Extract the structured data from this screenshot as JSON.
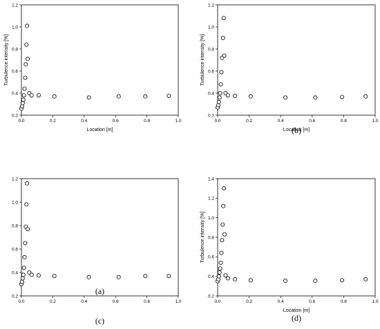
{
  "chart_data": [
    {
      "type": "scatter",
      "panel_label": "(a)",
      "xlabel": "Location [m]",
      "ylabel": "Turbulence intensity [%]",
      "xlim": [
        0,
        1.0
      ],
      "ylim": [
        0.2,
        1.2
      ],
      "xticks": [
        "0.0",
        "0.2",
        "0.4",
        "0.6",
        "0.8",
        "1.0"
      ],
      "yticks": [
        "0.2",
        "0.4",
        "0.6",
        "0.8",
        "1.0",
        "1.2"
      ],
      "grid": false,
      "legend": "none",
      "marker": "open-circle",
      "points": [
        [
          0.0,
          0.26
        ],
        [
          0.004,
          0.28
        ],
        [
          0.008,
          0.31
        ],
        [
          0.012,
          0.34
        ],
        [
          0.016,
          0.38
        ],
        [
          0.02,
          0.44
        ],
        [
          0.024,
          0.54
        ],
        [
          0.028,
          0.66
        ],
        [
          0.032,
          0.84
        ],
        [
          0.036,
          1.01
        ],
        [
          0.04,
          0.71
        ],
        [
          0.05,
          0.4
        ],
        [
          0.065,
          0.38
        ],
        [
          0.11,
          0.38
        ],
        [
          0.21,
          0.37
        ],
        [
          0.43,
          0.36
        ],
        [
          0.62,
          0.37
        ],
        [
          0.79,
          0.37
        ],
        [
          0.94,
          0.375
        ]
      ]
    },
    {
      "type": "scatter",
      "panel_label": "(b)",
      "xlabel": "Location [m]",
      "ylabel": "Turbulence intensity [%]",
      "xlim": [
        0,
        1.0
      ],
      "ylim": [
        0.2,
        1.2
      ],
      "xticks": [
        "0.0",
        "0.2",
        "0.4",
        "0.6",
        "0.8",
        "1.0"
      ],
      "yticks": [
        "0.2",
        "0.4",
        "0.6",
        "0.8",
        "1.0",
        "1.2"
      ],
      "grid": false,
      "legend": "none",
      "marker": "open-circle",
      "points": [
        [
          0.0,
          0.27
        ],
        [
          0.004,
          0.29
        ],
        [
          0.008,
          0.32
        ],
        [
          0.012,
          0.36
        ],
        [
          0.016,
          0.4
        ],
        [
          0.02,
          0.48
        ],
        [
          0.024,
          0.59
        ],
        [
          0.028,
          0.72
        ],
        [
          0.034,
          0.9
        ],
        [
          0.038,
          1.08
        ],
        [
          0.042,
          0.74
        ],
        [
          0.05,
          0.4
        ],
        [
          0.065,
          0.38
        ],
        [
          0.11,
          0.375
        ],
        [
          0.21,
          0.37
        ],
        [
          0.43,
          0.36
        ],
        [
          0.62,
          0.36
        ],
        [
          0.79,
          0.365
        ],
        [
          0.94,
          0.37
        ]
      ]
    },
    {
      "type": "scatter",
      "panel_label": "(c)",
      "xlabel": "",
      "ylabel": "",
      "xlim": [
        0,
        1.0
      ],
      "ylim": [
        0.2,
        1.2
      ],
      "xticks": [
        "0.0",
        "0.2",
        "0.4",
        "0.6",
        "0.8",
        "1.0"
      ],
      "yticks": [
        "0.2",
        "0.4",
        "0.6",
        "0.8",
        "1.0",
        "1.2"
      ],
      "grid": false,
      "legend": "none",
      "marker": "open-circle",
      "points": [
        [
          0.0,
          0.3
        ],
        [
          0.004,
          0.32
        ],
        [
          0.008,
          0.35
        ],
        [
          0.012,
          0.38
        ],
        [
          0.016,
          0.44
        ],
        [
          0.02,
          0.53
        ],
        [
          0.024,
          0.65
        ],
        [
          0.028,
          0.79
        ],
        [
          0.032,
          0.98
        ],
        [
          0.036,
          1.16
        ],
        [
          0.04,
          0.77
        ],
        [
          0.05,
          0.4
        ],
        [
          0.065,
          0.38
        ],
        [
          0.11,
          0.375
        ],
        [
          0.21,
          0.37
        ],
        [
          0.43,
          0.36
        ],
        [
          0.62,
          0.36
        ],
        [
          0.79,
          0.37
        ],
        [
          0.94,
          0.37
        ]
      ]
    },
    {
      "type": "scatter",
      "panel_label": "(d)",
      "xlabel": "Location [m]",
      "ylabel": "Turbulence intensity [%]",
      "xlim": [
        0,
        1.0
      ],
      "ylim": [
        0.2,
        1.4
      ],
      "xticks": [
        "0.0",
        "0.2",
        "0.4",
        "0.6",
        "0.8",
        "1.0"
      ],
      "yticks": [
        "0.2",
        "0.4",
        "0.6",
        "0.8",
        "1.0",
        "1.2",
        "1.4"
      ],
      "grid": false,
      "legend": "none",
      "marker": "open-circle",
      "points": [
        [
          0.0,
          0.35
        ],
        [
          0.004,
          0.37
        ],
        [
          0.008,
          0.4
        ],
        [
          0.012,
          0.44
        ],
        [
          0.016,
          0.48
        ],
        [
          0.02,
          0.54
        ],
        [
          0.024,
          0.64
        ],
        [
          0.028,
          0.77
        ],
        [
          0.032,
          0.93
        ],
        [
          0.036,
          1.12
        ],
        [
          0.04,
          1.3
        ],
        [
          0.044,
          0.83
        ],
        [
          0.05,
          0.41
        ],
        [
          0.065,
          0.38
        ],
        [
          0.11,
          0.37
        ],
        [
          0.21,
          0.36
        ],
        [
          0.43,
          0.355
        ],
        [
          0.62,
          0.355
        ],
        [
          0.79,
          0.36
        ],
        [
          0.94,
          0.37
        ]
      ]
    }
  ]
}
